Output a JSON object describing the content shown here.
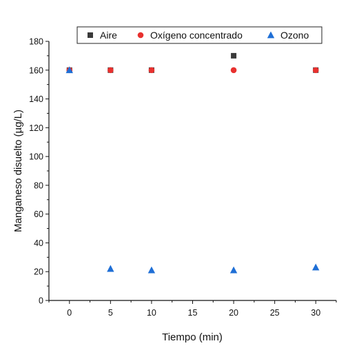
{
  "chart_data": {
    "type": "scatter",
    "xlabel": "Tiempo (min)",
    "ylabel": "Manganeso disuelto (µg/L)",
    "xlim": [
      -2.5,
      32.5
    ],
    "ylim": [
      0,
      180
    ],
    "x_ticks": [
      0,
      5,
      10,
      15,
      20,
      25,
      30
    ],
    "y_ticks": [
      0,
      20,
      40,
      60,
      80,
      100,
      120,
      140,
      160,
      180
    ],
    "legend_position": "top",
    "grid": false,
    "series": [
      {
        "name": "Aire",
        "marker": "square",
        "color": "#3a3a3a",
        "x": [
          0,
          5,
          10,
          20,
          30
        ],
        "y": [
          160,
          160,
          160,
          170,
          160
        ]
      },
      {
        "name": "Oxígeno concentrado",
        "marker": "circle",
        "color": "#e8312f",
        "x": [
          0,
          5,
          10,
          20,
          30
        ],
        "y": [
          160,
          160,
          160,
          160,
          160
        ]
      },
      {
        "name": "Ozono",
        "marker": "triangle",
        "color": "#1f6fd6",
        "x": [
          0,
          5,
          10,
          20,
          30
        ],
        "y": [
          160,
          22,
          21,
          21,
          23
        ]
      }
    ]
  }
}
